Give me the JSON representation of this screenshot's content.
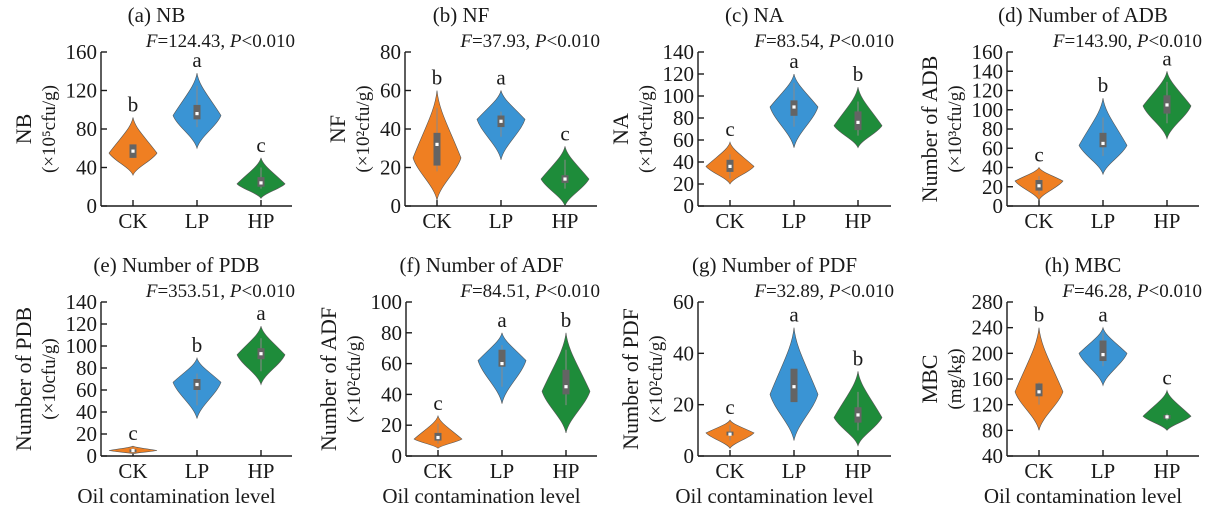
{
  "figure": {
    "x_axis_label": "Oil contamination level",
    "groups": [
      "CK",
      "LP",
      "HP"
    ],
    "group_colors": {
      "CK": "#ef7f22",
      "LP": "#3a94d4",
      "HP": "#1e8c3a"
    },
    "box_color": "#646464",
    "median_color": "#ffffff"
  },
  "chart_data": [
    {
      "type": "violin",
      "title": "(a) NB",
      "stat_text": {
        "F": "124.43",
        "P": "0.010"
      },
      "ylabel_line1": "NB",
      "ylabel_line2": "(×10⁵cfu/g)",
      "xlabel": "",
      "ylim": [
        0,
        160
      ],
      "yticks": [
        0,
        40,
        80,
        120,
        160
      ],
      "categories": [
        "CK",
        "LP",
        "HP"
      ],
      "series": [
        {
          "name": "CK",
          "min": 32,
          "max": 92,
          "widest": 55,
          "q1": 50,
          "median": 57,
          "q3": 64,
          "whisker_lo": 50,
          "whisker_hi": 64,
          "letter": "b"
        },
        {
          "name": "LP",
          "min": 60,
          "max": 138,
          "widest": 94,
          "q1": 90,
          "median": 96,
          "q3": 105,
          "whisker_lo": 82,
          "whisker_hi": 125,
          "letter": "a"
        },
        {
          "name": "HP",
          "min": 8,
          "max": 50,
          "widest": 23,
          "q1": 20,
          "median": 24,
          "q3": 30,
          "whisker_lo": 18,
          "whisker_hi": 40,
          "letter": "c"
        }
      ]
    },
    {
      "type": "violin",
      "title": "(b) NF",
      "stat_text": {
        "F": "37.93",
        "P": "0.010"
      },
      "ylabel_line1": "NF",
      "ylabel_line2": "(×10²cfu/g)",
      "xlabel": "",
      "ylim": [
        0,
        80
      ],
      "yticks": [
        0,
        20,
        40,
        60,
        80
      ],
      "categories": [
        "CK",
        "LP",
        "HP"
      ],
      "series": [
        {
          "name": "CK",
          "min": 3,
          "max": 60,
          "widest": 25,
          "q1": 21,
          "median": 32,
          "q3": 38,
          "whisker_lo": 18,
          "whisker_hi": 51,
          "letter": "b"
        },
        {
          "name": "LP",
          "min": 24,
          "max": 60,
          "widest": 45,
          "q1": 41,
          "median": 44,
          "q3": 47,
          "whisker_lo": 36,
          "whisker_hi": 49,
          "letter": "a"
        },
        {
          "name": "HP",
          "min": 0,
          "max": 31,
          "widest": 14,
          "q1": 12,
          "median": 14,
          "q3": 16,
          "whisker_lo": 9,
          "whisker_hi": 24,
          "letter": "c"
        }
      ]
    },
    {
      "type": "violin",
      "title": "(c) NA",
      "stat_text": {
        "F": "83.54",
        "P": "0.010"
      },
      "ylabel_line1": "NA",
      "ylabel_line2": "(×10⁴cfu/g)",
      "xlabel": "",
      "ylim": [
        0,
        140
      ],
      "yticks": [
        0,
        20,
        40,
        60,
        80,
        100,
        120,
        140
      ],
      "categories": [
        "CK",
        "LP",
        "HP"
      ],
      "series": [
        {
          "name": "CK",
          "min": 20,
          "max": 58,
          "widest": 36,
          "q1": 31,
          "median": 36,
          "q3": 42,
          "whisker_lo": 25,
          "whisker_hi": 47,
          "letter": "c"
        },
        {
          "name": "LP",
          "min": 53,
          "max": 120,
          "widest": 90,
          "q1": 82,
          "median": 90,
          "q3": 96,
          "whisker_lo": 72,
          "whisker_hi": 112,
          "letter": "a"
        },
        {
          "name": "HP",
          "min": 53,
          "max": 108,
          "widest": 73,
          "q1": 69,
          "median": 76,
          "q3": 86,
          "whisker_lo": 64,
          "whisker_hi": 95,
          "letter": "b"
        }
      ]
    },
    {
      "type": "violin",
      "title": "(d) Number of ADB",
      "stat_text": {
        "F": "143.90",
        "P": "0.010"
      },
      "ylabel_line1": "Number of ADB",
      "ylabel_line2": "(×10³cfu/g)",
      "xlabel": "",
      "ylim": [
        0,
        160
      ],
      "yticks": [
        0,
        20,
        40,
        60,
        80,
        100,
        120,
        140,
        160
      ],
      "categories": [
        "CK",
        "LP",
        "HP"
      ],
      "series": [
        {
          "name": "CK",
          "min": 6,
          "max": 40,
          "widest": 26,
          "q1": 16,
          "median": 21,
          "q3": 27,
          "whisker_lo": 12,
          "whisker_hi": 31,
          "letter": "c"
        },
        {
          "name": "LP",
          "min": 33,
          "max": 112,
          "widest": 63,
          "q1": 61,
          "median": 65,
          "q3": 76,
          "whisker_lo": 52,
          "whisker_hi": 92,
          "letter": "b"
        },
        {
          "name": "HP",
          "min": 70,
          "max": 140,
          "widest": 104,
          "q1": 96,
          "median": 105,
          "q3": 115,
          "whisker_lo": 86,
          "whisker_hi": 129,
          "letter": "a"
        }
      ]
    },
    {
      "type": "violin",
      "title": "(e) Number of PDB",
      "stat_text": {
        "F": "353.51",
        "P": "0.010"
      },
      "ylabel_line1": "Number of PDB",
      "ylabel_line2": "(×10cfu/g)",
      "xlabel": "Oil contamination level",
      "ylim": [
        0,
        140
      ],
      "yticks": [
        0,
        20,
        40,
        60,
        80,
        100,
        120,
        140
      ],
      "categories": [
        "CK",
        "LP",
        "HP"
      ],
      "series": [
        {
          "name": "CK",
          "min": 2,
          "max": 9,
          "widest": 5,
          "q1": 4,
          "median": 5,
          "q3": 6,
          "whisker_lo": 2,
          "whisker_hi": 8,
          "letter": "c"
        },
        {
          "name": "LP",
          "min": 34,
          "max": 89,
          "widest": 67,
          "q1": 60,
          "median": 65,
          "q3": 70,
          "whisker_lo": 46,
          "whisker_hi": 75,
          "letter": "b"
        },
        {
          "name": "HP",
          "min": 65,
          "max": 118,
          "widest": 92,
          "q1": 88,
          "median": 93,
          "q3": 98,
          "whisker_lo": 77,
          "whisker_hi": 107,
          "letter": "a"
        }
      ]
    },
    {
      "type": "violin",
      "title": "(f) Number of ADF",
      "stat_text": {
        "F": "84.51",
        "P": "0.010"
      },
      "ylabel_line1": "Number of ADF",
      "ylabel_line2": "(×10²cfu/g)",
      "xlabel": "Oil contamination level",
      "ylim": [
        0,
        100
      ],
      "yticks": [
        0,
        20,
        40,
        60,
        80,
        100
      ],
      "categories": [
        "CK",
        "LP",
        "HP"
      ],
      "series": [
        {
          "name": "CK",
          "min": 5,
          "max": 26,
          "widest": 11,
          "q1": 10,
          "median": 12,
          "q3": 15,
          "whisker_lo": 8,
          "whisker_hi": 21,
          "letter": "c"
        },
        {
          "name": "LP",
          "min": 34,
          "max": 80,
          "widest": 62,
          "q1": 58,
          "median": 60,
          "q3": 69,
          "whisker_lo": 45,
          "whisker_hi": 72,
          "letter": "a"
        },
        {
          "name": "HP",
          "min": 15,
          "max": 80,
          "widest": 42,
          "q1": 40,
          "median": 45,
          "q3": 56,
          "whisker_lo": 33,
          "whisker_hi": 69,
          "letter": "b"
        }
      ]
    },
    {
      "type": "violin",
      "title": "(g) Number of PDF",
      "stat_text": {
        "F": "32.89",
        "P": "0.010"
      },
      "ylabel_line1": "Number of PDF",
      "ylabel_line2": "(×10²cfu/g)",
      "xlabel": "Oil contamination level",
      "ylim": [
        0,
        60
      ],
      "yticks": [
        0,
        20,
        40,
        60
      ],
      "categories": [
        "CK",
        "LP",
        "HP"
      ],
      "series": [
        {
          "name": "CK",
          "min": 3,
          "max": 14,
          "widest": 9,
          "q1": 8,
          "median": 8.5,
          "q3": 9.5,
          "whisker_lo": 6,
          "whisker_hi": 12,
          "letter": "c"
        },
        {
          "name": "LP",
          "min": 6,
          "max": 50,
          "widest": 24,
          "q1": 21,
          "median": 27,
          "q3": 34,
          "whisker_lo": 21,
          "whisker_hi": 34,
          "letter": "a"
        },
        {
          "name": "HP",
          "min": 4,
          "max": 33,
          "widest": 15,
          "q1": 13,
          "median": 16,
          "q3": 19,
          "whisker_lo": 10,
          "whisker_hi": 25,
          "letter": "b"
        }
      ]
    },
    {
      "type": "violin",
      "title": "(h) MBC",
      "stat_text": {
        "F": "46.28",
        "P": "0.010"
      },
      "ylabel_line1": "MBC",
      "ylabel_line2": "(mg/kg)",
      "xlabel": "Oil contamination level",
      "ylim": [
        40,
        280
      ],
      "yticks": [
        40,
        80,
        120,
        160,
        200,
        240,
        280
      ],
      "categories": [
        "CK",
        "LP",
        "HP"
      ],
      "series": [
        {
          "name": "CK",
          "min": 80,
          "max": 240,
          "widest": 140,
          "q1": 133,
          "median": 140,
          "q3": 153,
          "whisker_lo": 120,
          "whisker_hi": 155,
          "letter": "b"
        },
        {
          "name": "LP",
          "min": 150,
          "max": 240,
          "widest": 200,
          "q1": 188,
          "median": 198,
          "q3": 220,
          "whisker_lo": 180,
          "whisker_hi": 232,
          "letter": "a"
        },
        {
          "name": "HP",
          "min": 80,
          "max": 142,
          "widest": 102,
          "q1": 98,
          "median": 101,
          "q3": 104,
          "whisker_lo": 96,
          "whisker_hi": 106,
          "letter": "c"
        }
      ]
    }
  ]
}
